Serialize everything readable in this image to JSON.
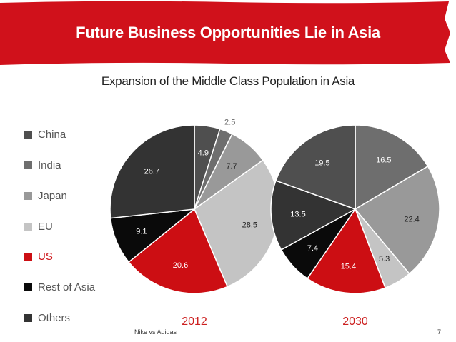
{
  "slide": {
    "title": "Future Business Opportunities Lie in Asia",
    "footer_left": "Nike vs Adidas",
    "page_number": "7"
  },
  "colors": {
    "banner": "#d0111b",
    "China": "#4f4f4f",
    "India": "#6e6e6e",
    "Japan": "#999999",
    "EU": "#c4c4c4",
    "US": "#cc0e13",
    "Rest of Asia": "#0a0a0a",
    "Others": "#333333",
    "year_label": "#cc1f1f"
  },
  "chart_data": {
    "type": "pie",
    "title": "Expansion of the Middle Class Population in Asia",
    "legend": [
      "China",
      "India",
      "Japan",
      "EU",
      "US",
      "Rest of Asia",
      "Others"
    ],
    "legend_position": "left",
    "pies": [
      {
        "label": "2012",
        "slices": [
          {
            "name": "China",
            "value": 4.9
          },
          {
            "name": "India",
            "value": 2.5
          },
          {
            "name": "Japan",
            "value": 7.7
          },
          {
            "name": "EU",
            "value": 28.5
          },
          {
            "name": "US",
            "value": 20.6
          },
          {
            "name": "Rest of Asia",
            "value": 9.1
          },
          {
            "name": "Others",
            "value": 26.7
          }
        ]
      },
      {
        "label": "2030",
        "slices": [
          {
            "name": "India",
            "value": 16.5
          },
          {
            "name": "Japan",
            "value": 22.4
          },
          {
            "name": "EU",
            "value": 5.3
          },
          {
            "name": "US",
            "value": 15.4
          },
          {
            "name": "Rest of Asia",
            "value": 7.4
          },
          {
            "name": "Others",
            "value": 13.5
          },
          {
            "name": "China",
            "value": 19.5
          }
        ]
      }
    ]
  }
}
